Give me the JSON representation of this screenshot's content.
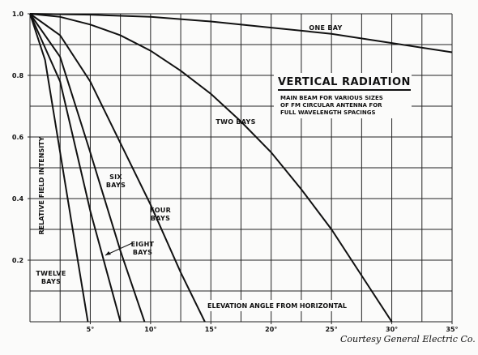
{
  "chart_data": {
    "type": "line",
    "title": "VERTICAL RADIATION",
    "subtitle": [
      "MAIN BEAM FOR VARIOUS SIZES",
      "OF FM CIRCULAR ANTENNA FOR",
      "FULL WAVELENGTH SPACINGS"
    ],
    "xlabel": "ELEVATION ANGLE FROM HORIZONTAL",
    "ylabel": "RELATIVE FIELD INTENSITY",
    "credit": "Courtesy General Electric Co.",
    "xlim": [
      0,
      35
    ],
    "ylim": [
      0,
      1
    ],
    "xticks": [
      {
        "value": 5,
        "label": "5°"
      },
      {
        "value": 10,
        "label": "10°"
      },
      {
        "value": 15,
        "label": "15°"
      },
      {
        "value": 20,
        "label": "20°"
      },
      {
        "value": 25,
        "label": "25°"
      },
      {
        "value": 30,
        "label": "30°"
      },
      {
        "value": 35,
        "label": "35°"
      }
    ],
    "yticks": [
      0.2,
      0.4,
      0.6,
      0.8,
      {
        "value": 1,
        "label": "1.0"
      }
    ],
    "xgrid": [
      0,
      2.5,
      5,
      7.5,
      10,
      12.5,
      15,
      17.5,
      20,
      22.5,
      25,
      27.5,
      30,
      32.5,
      35
    ],
    "ygrid": [
      0,
      0.1,
      0.2,
      0.3,
      0.4,
      0.5,
      0.6,
      0.7,
      0.8,
      0.9,
      1
    ],
    "grid": true,
    "series": [
      {
        "name": "ONE BAY",
        "color": "#111111",
        "x": [
          0,
          5,
          10,
          15,
          20,
          25,
          30,
          35
        ],
        "values": [
          1,
          0.997,
          0.99,
          0.975,
          0.955,
          0.935,
          0.905,
          0.875
        ]
      },
      {
        "name": "TWO BAYS",
        "color": "#111111",
        "x": [
          0,
          2.5,
          5,
          7.5,
          10,
          12.5,
          15,
          17.5,
          20,
          22.5,
          25,
          27.5,
          30
        ],
        "values": [
          1,
          0.99,
          0.965,
          0.93,
          0.88,
          0.815,
          0.74,
          0.65,
          0.55,
          0.43,
          0.3,
          0.15,
          0
        ]
      },
      {
        "name": "FOUR BAYS",
        "color": "#111111",
        "x": [
          0,
          2.5,
          5,
          7.5,
          10,
          12.5,
          14.5
        ],
        "values": [
          1,
          0.93,
          0.78,
          0.58,
          0.38,
          0.16,
          0
        ]
      },
      {
        "name": "SIX BAYS",
        "color": "#111111",
        "x": [
          0,
          2.5,
          5,
          7.5,
          9.5
        ],
        "values": [
          1,
          0.86,
          0.55,
          0.23,
          0
        ]
      },
      {
        "name": "EIGHT BAYS",
        "color": "#111111",
        "x": [
          0,
          2.5,
          5,
          7.5
        ],
        "values": [
          1,
          0.78,
          0.36,
          0
        ]
      },
      {
        "name": "TWELVE BAYS",
        "color": "#111111",
        "x": [
          0,
          1.25,
          2.5,
          3.75,
          4.8
        ],
        "values": [
          1,
          0.85,
          0.55,
          0.25,
          0
        ]
      }
    ]
  }
}
